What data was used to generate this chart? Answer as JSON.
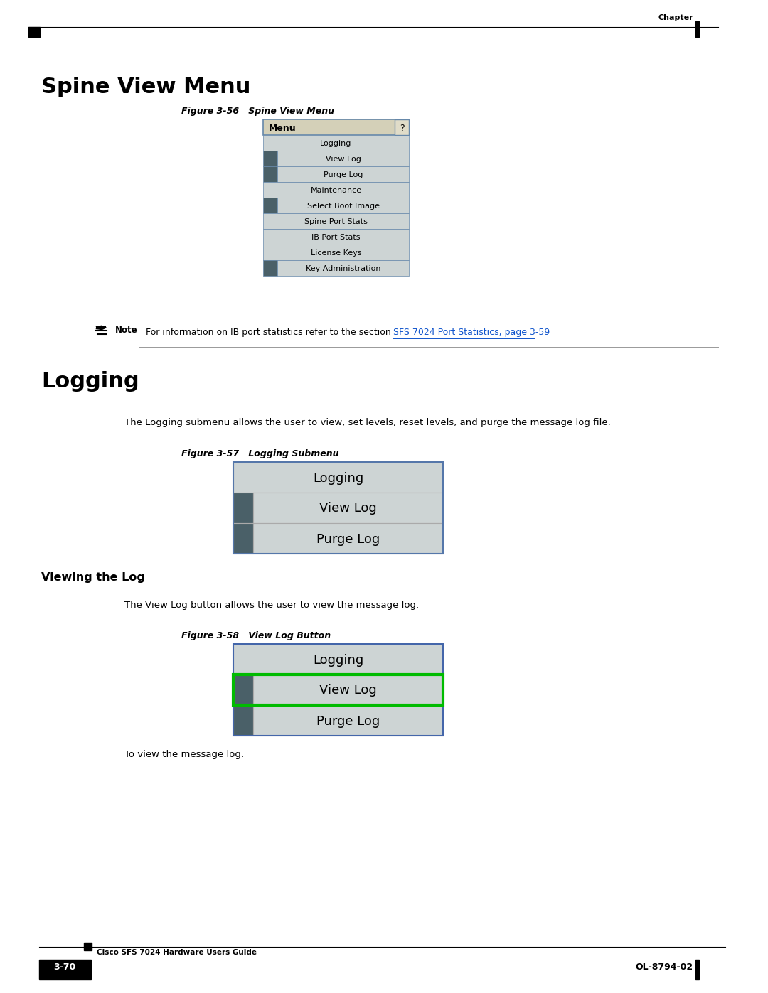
{
  "page_bg": "#ffffff",
  "chapter_text": "Chapter",
  "page_number": "3-70",
  "doc_title": "Cisco SFS 7024 Hardware Users Guide",
  "doc_code": "OL-8794-02",
  "section_title": "Spine View Menu",
  "section2_title": "Logging",
  "fig1_caption": "Figure 3-56   Spine View Menu",
  "fig2_caption": "Figure 3-57   Logging Submenu",
  "fig3_caption": "Figure 3-58   View Log Button",
  "subsection_title": "Viewing the Log",
  "para1": "The Logging submenu allows the user to view, set levels, reset levels, and purge the message log file.",
  "para2": "The View Log button allows the user to view the message log.",
  "para3": "To view the message log:",
  "note_text": "For information on IB port statistics refer to the section ",
  "note_link": "SFS 7024 Port Statistics, page 3-59",
  "note_link_color": "#1155cc",
  "menu1_items": [
    "Logging",
    "View Log",
    "Purge Log",
    "Maintenance",
    "Select Boot Image",
    "Spine Port Stats",
    "IB Port Stats",
    "License Keys",
    "Key Administration"
  ],
  "menu1_indented": [
    false,
    true,
    true,
    false,
    true,
    false,
    false,
    false,
    true
  ],
  "menu_header_bg": "#d4d0b8",
  "menu_header_text": "Menu",
  "menu_item_bg": "#cdd4d4",
  "menu_item_dark": "#4a6068",
  "menu_border": "#6688aa",
  "menu_question": "?",
  "logging_items": [
    "Logging",
    "View Log",
    "Purge Log"
  ],
  "logging_indented": [
    false,
    true,
    true
  ],
  "viewlog_items": [
    "Logging",
    "View Log",
    "Purge Log"
  ],
  "viewlog_indented": [
    false,
    true,
    true
  ],
  "viewlog_highlight": 1,
  "highlight_border": "#00bb00",
  "highlight_bg": "#cdd4d4"
}
